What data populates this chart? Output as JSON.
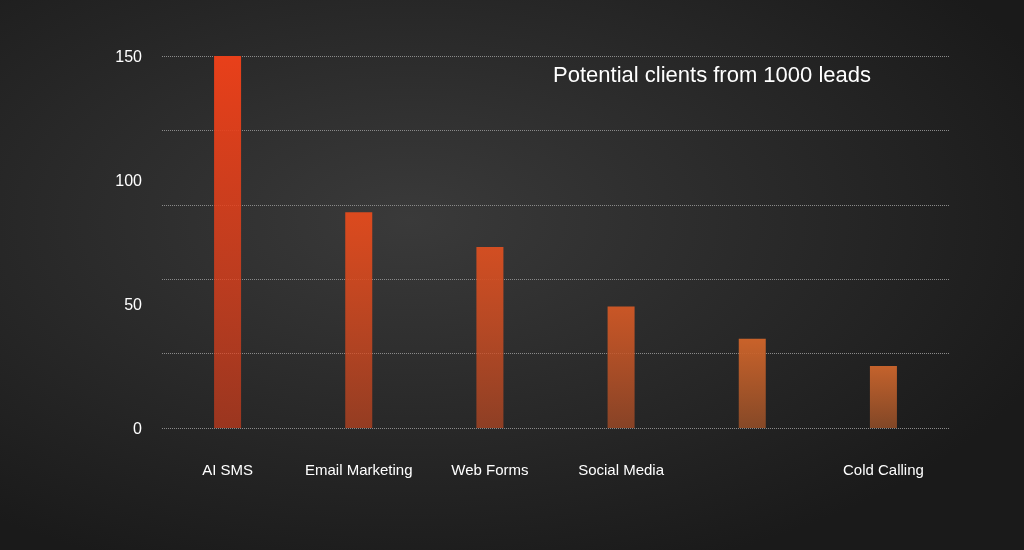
{
  "chart_data": {
    "type": "bar",
    "title": "Potential clients from 1000 leads",
    "categories": [
      "AI SMS",
      "Email Marketing",
      "Web Forms",
      "Social Media",
      null,
      "Cold Calling"
    ],
    "values": [
      150,
      87,
      73,
      49,
      36,
      25
    ],
    "colors": [
      "#e8401a",
      "#dc4a1e",
      "#d24e22",
      "#c95626",
      "#c9622a",
      "#c4622c"
    ],
    "ylim": [
      0,
      150
    ],
    "yticks": [
      0,
      50,
      100,
      150
    ],
    "grid": "y"
  }
}
